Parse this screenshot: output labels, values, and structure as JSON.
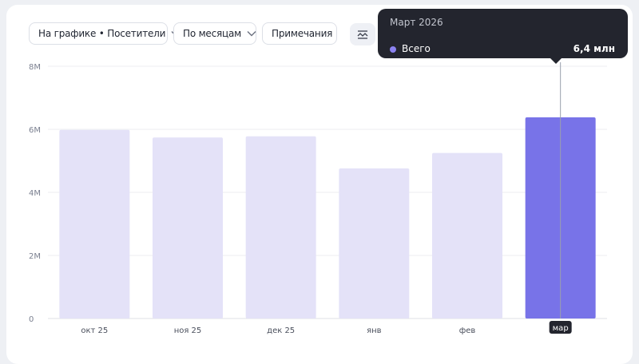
{
  "toolbar": {
    "metric_select": "На графике • Посетители",
    "period_select": "По месяцам",
    "notes_button": "Примечания"
  },
  "tooltip": {
    "title": "Март 2026",
    "series_name": "Всего",
    "value": "6,4 млн"
  },
  "colors": {
    "bar": "#e4e2f8",
    "bar_active": "#7873e8",
    "accent_dot": "#8b82f0"
  },
  "chart_data": {
    "type": "bar",
    "categories": [
      "окт 25",
      "ноя 25",
      "дек 25",
      "янв",
      "фев",
      "мар"
    ],
    "values": [
      5.98,
      5.74,
      5.78,
      4.76,
      5.25,
      6.38
    ],
    "active_index": 5,
    "ylim": [
      0,
      8
    ],
    "yticks": [
      {
        "value": 0,
        "label": "0"
      },
      {
        "value": 2,
        "label": "2M"
      },
      {
        "value": 4,
        "label": "4M"
      },
      {
        "value": 6,
        "label": "6M"
      },
      {
        "value": 8,
        "label": "8M"
      }
    ],
    "grid": true
  }
}
